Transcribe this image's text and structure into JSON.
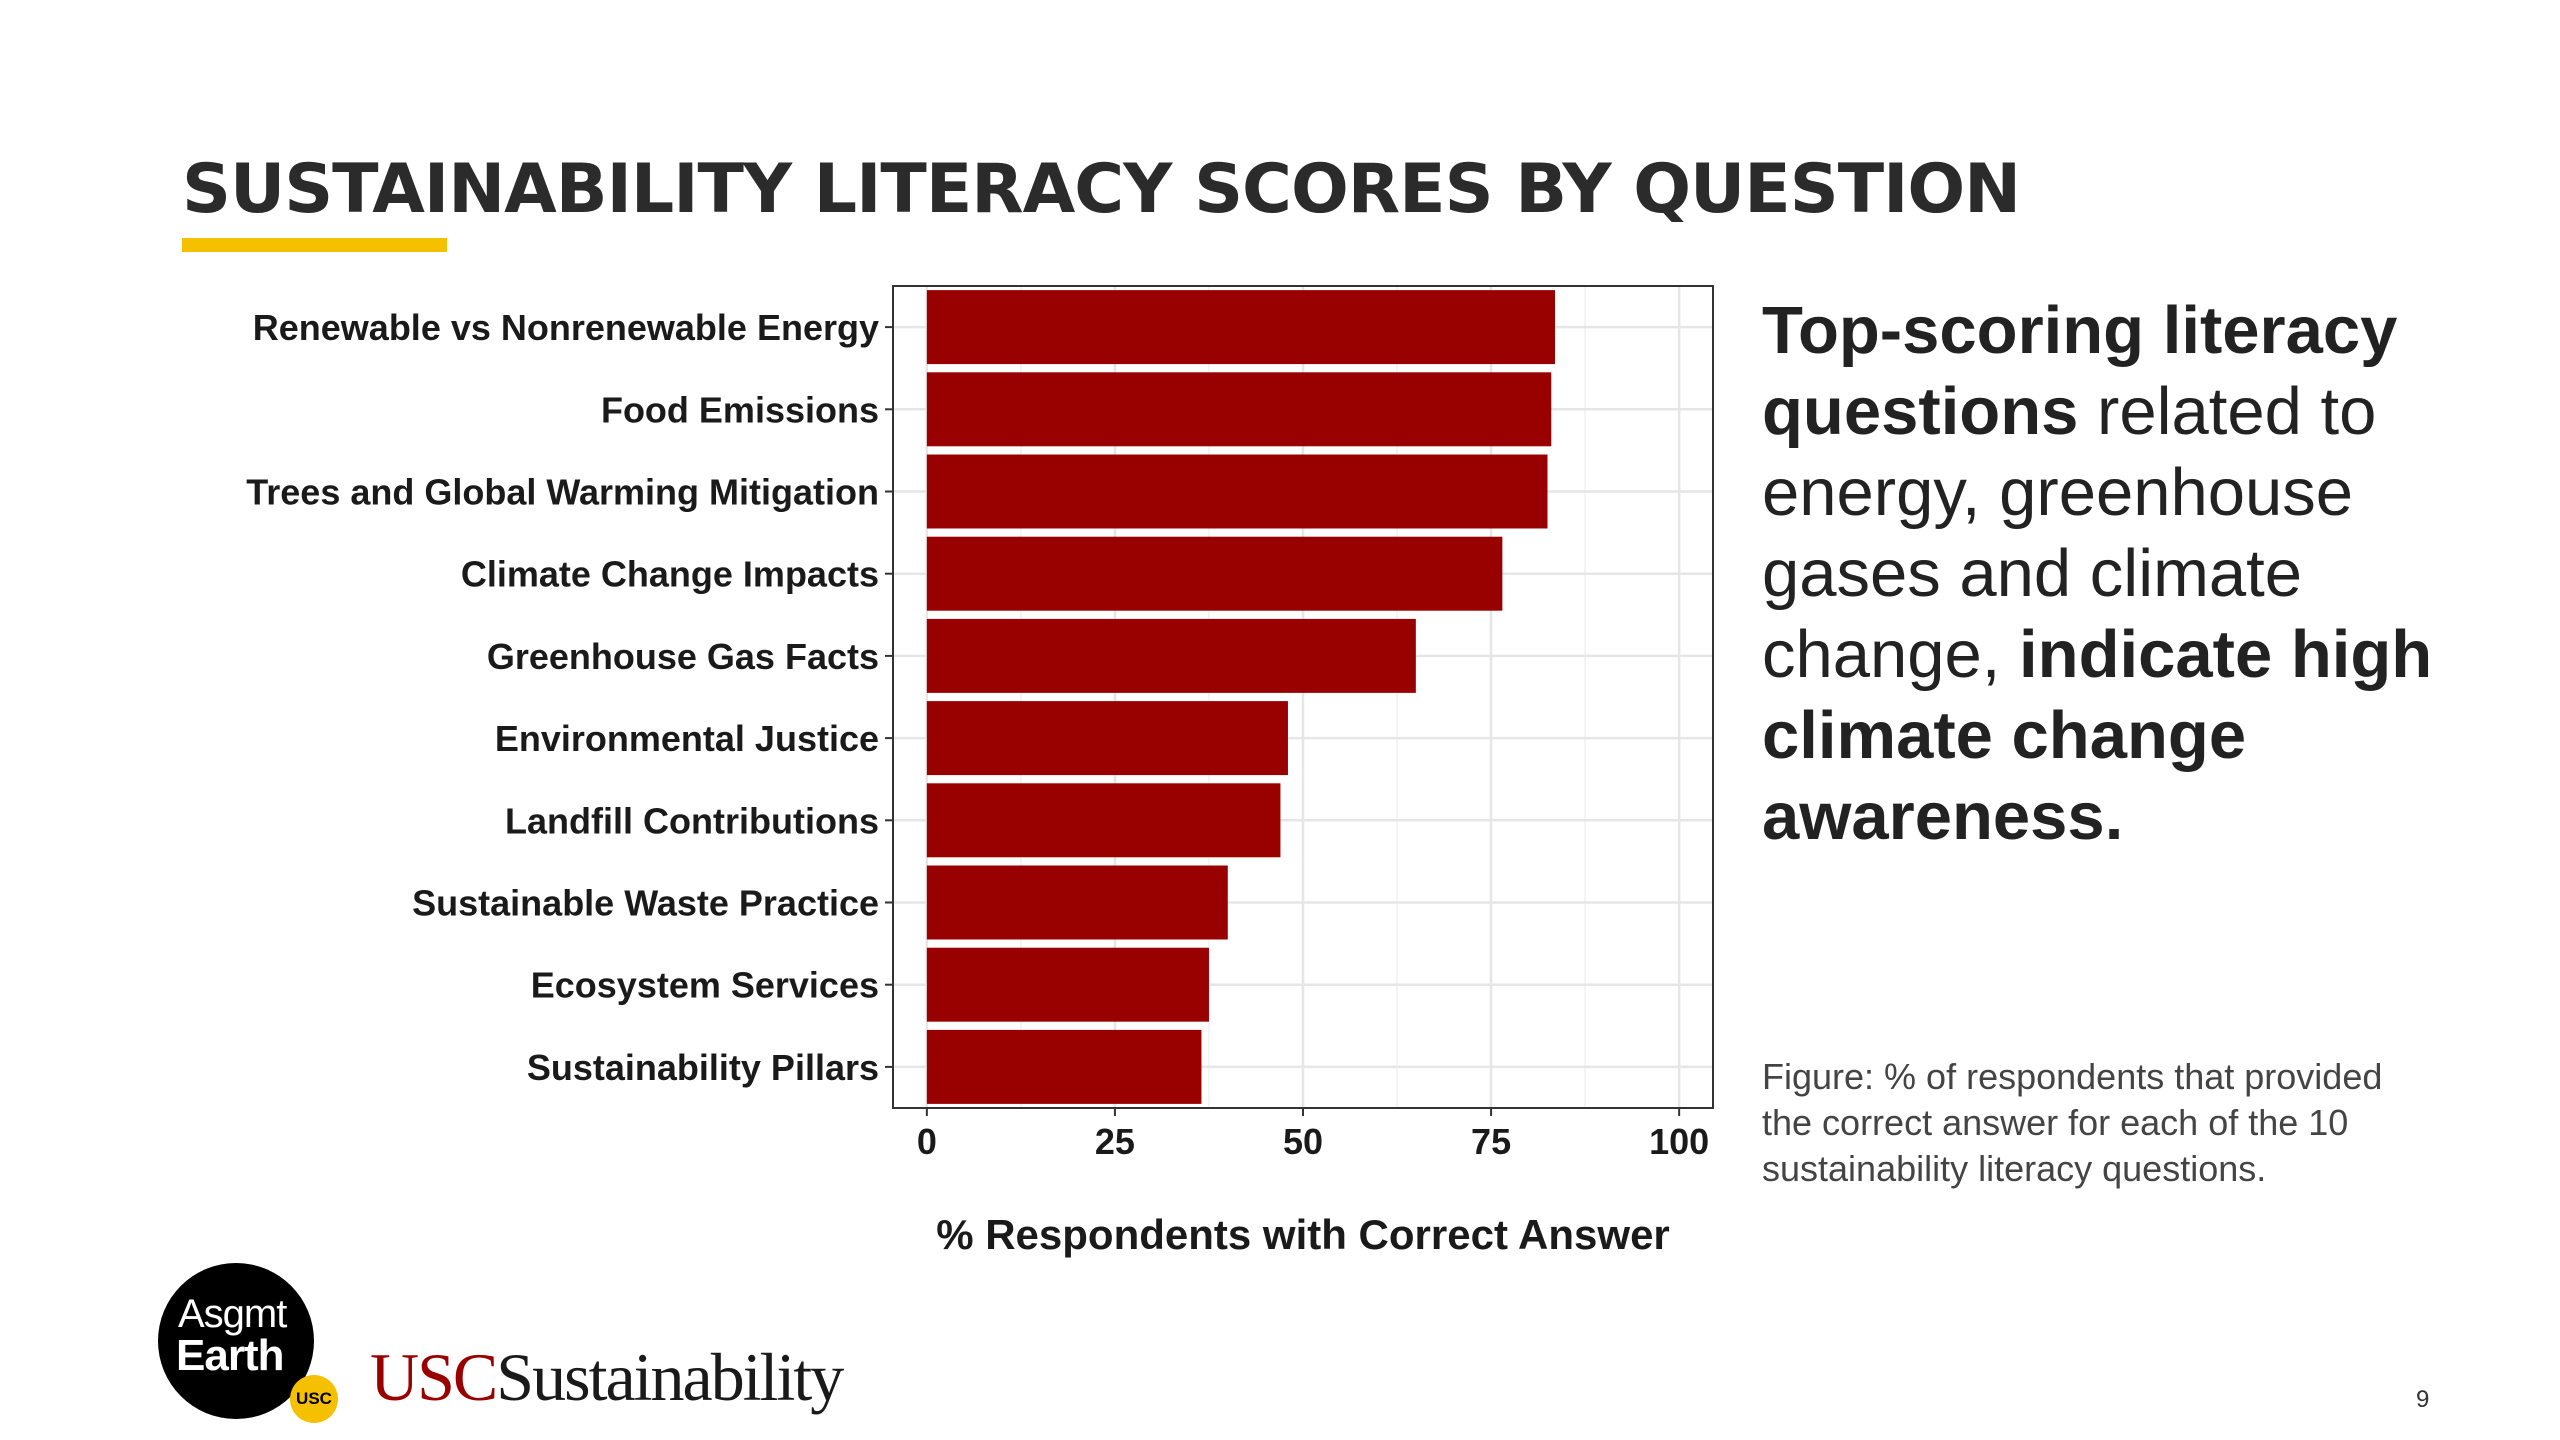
{
  "slide": {
    "title": "SUSTAINABILITY LITERACY SCORES BY QUESTION",
    "page_number": "9",
    "colors": {
      "accent_bar": "#F5C000",
      "bar_fill": "#990000"
    }
  },
  "callout": {
    "bold1": "Top-scoring literacy questions",
    "regular": " related to energy, greenhouse gases and climate change, ",
    "bold2": "indicate high climate change awareness."
  },
  "caption": "Figure: % of respondents that provided the correct answer for each of the 10 sustainability literacy questions.",
  "logos": {
    "asgmt_line1": "Asgmt",
    "asgmt_line2": "Earth",
    "asgmt_badge": "USC",
    "usc_part": "USC",
    "sustainability_part": "Sustainability"
  },
  "chart_data": {
    "type": "bar",
    "orientation": "horizontal",
    "categories": [
      "Renewable vs Nonrenewable Energy",
      "Food Emissions",
      "Trees and Global Warming Mitigation",
      "Climate Change Impacts",
      "Greenhouse Gas Facts",
      "Environmental Justice",
      "Landfill Contributions",
      "Sustainable Waste Practice",
      "Ecosystem Services",
      "Sustainability Pillars"
    ],
    "values": [
      83.5,
      83,
      82.5,
      76.5,
      65,
      48,
      47,
      40,
      37.5,
      36.5
    ],
    "xlabel": "% Respondents with Correct Answer",
    "ylabel": "",
    "xlim": [
      -4.5,
      104.5
    ],
    "xticks": [
      0,
      25,
      50,
      75,
      100
    ],
    "xtick_labels": [
      "0",
      "25",
      "50",
      "75",
      "100"
    ],
    "grid": true,
    "bar_color": "#990000"
  }
}
